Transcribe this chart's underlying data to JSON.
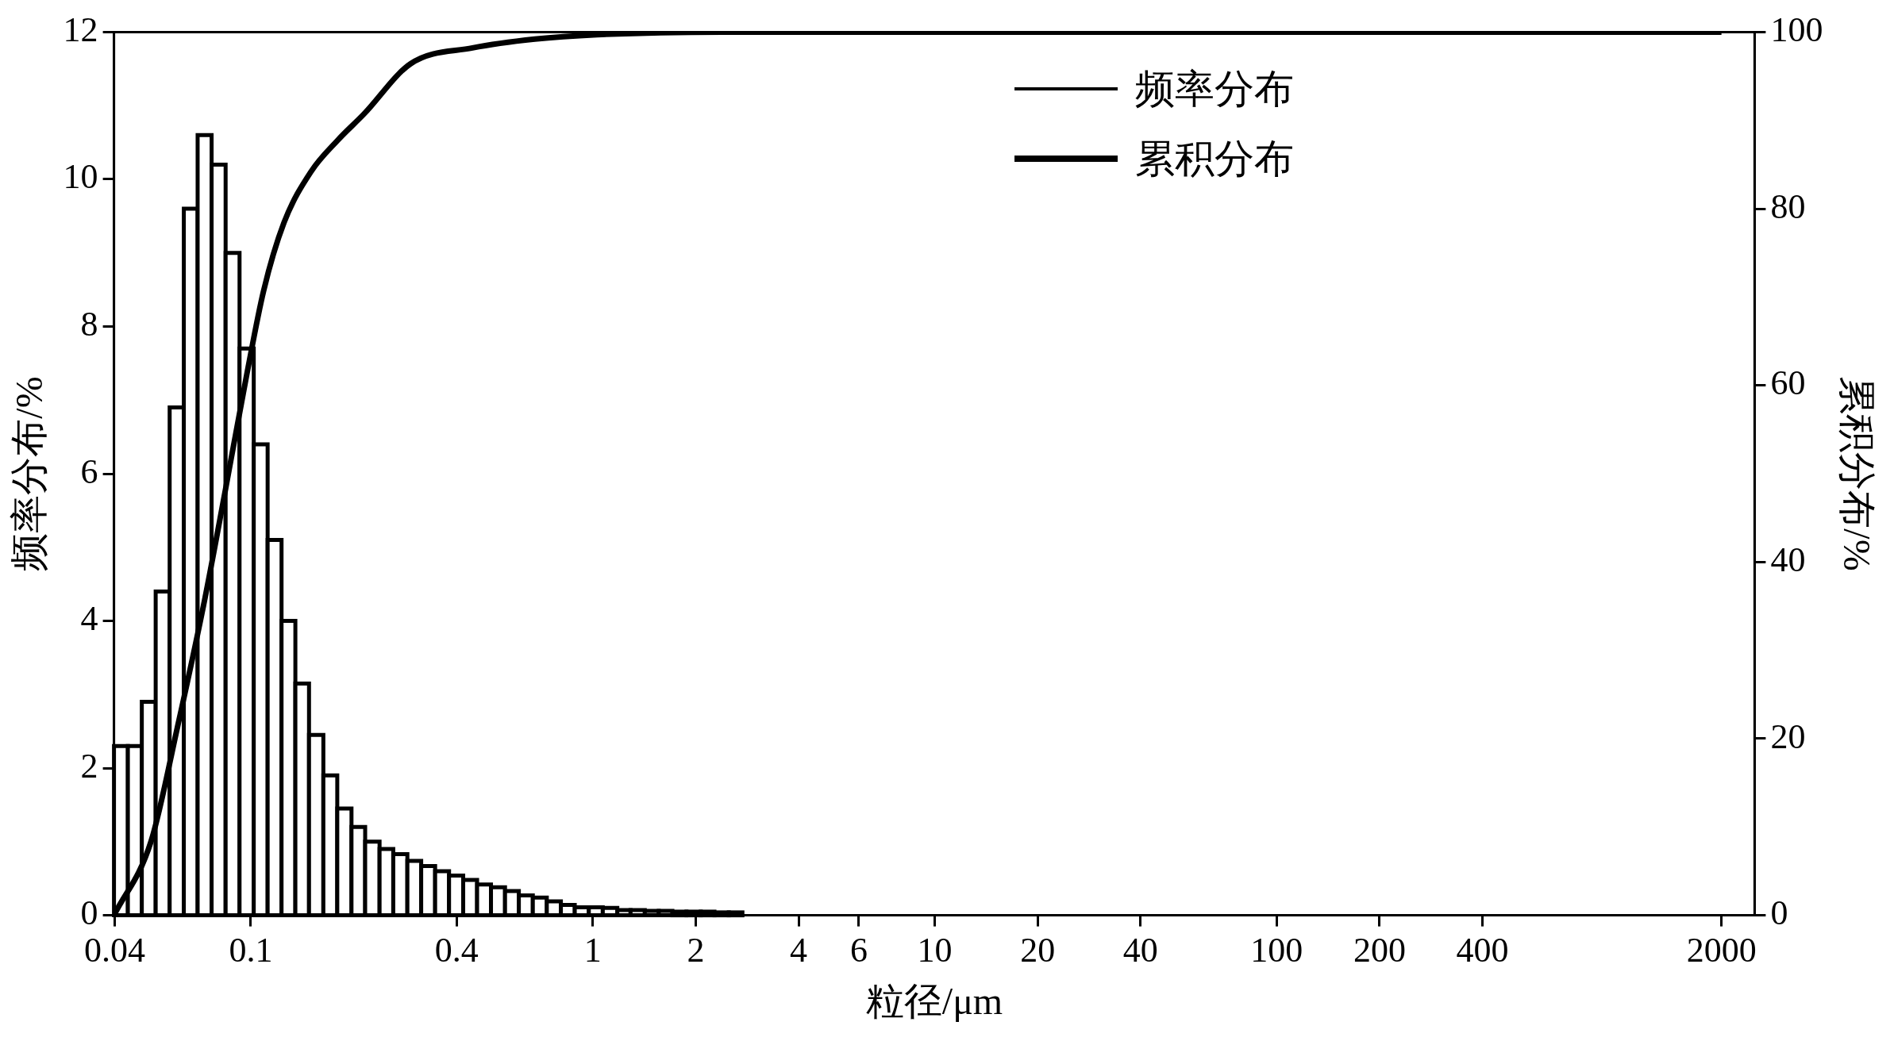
{
  "chart_data": {
    "type": "histogram",
    "xlabel": "粒径/μm",
    "ylabel": "频率分布/%",
    "y2label": "累积分布/%",
    "log": "x",
    "grid": false,
    "legend": "top",
    "xlim": [
      0.0398,
      2500
    ],
    "xticks": [
      0.04,
      0.1,
      0.4,
      1,
      2,
      4,
      6,
      10,
      20,
      40,
      100,
      200,
      400,
      2000
    ],
    "ylim": [
      0,
      12
    ],
    "yticks": [
      0,
      2,
      4,
      6,
      8,
      10,
      12
    ],
    "y2lim": [
      0,
      100
    ],
    "y2ticks": [
      0,
      20,
      40,
      60,
      80,
      100
    ],
    "bins": [
      0.0398,
      0.0437,
      0.048,
      0.0527,
      0.0579,
      0.0637,
      0.0699,
      0.0768,
      0.0844,
      0.0927,
      0.102,
      0.112,
      0.123,
      0.135,
      0.148,
      0.163,
      0.179,
      0.197,
      0.216,
      0.238,
      0.261,
      0.287,
      0.315,
      0.346,
      0.38,
      0.418,
      0.459,
      0.504,
      0.554,
      0.608,
      0.668,
      0.734,
      0.807,
      0.886,
      0.974,
      1.07,
      1.18,
      1.29,
      1.42,
      1.56,
      1.71,
      1.88,
      2.07,
      2.27,
      2.5,
      2.74
    ],
    "series": [
      {
        "name": "频率分布",
        "color": "#000000",
        "values": [
          2.3,
          2.3,
          2.9,
          4.4,
          6.9,
          9.6,
          10.6,
          10.2,
          9.0,
          7.7,
          6.4,
          5.1,
          4.0,
          3.15,
          2.45,
          1.9,
          1.45,
          1.2,
          1.0,
          0.9,
          0.83,
          0.74,
          0.67,
          0.6,
          0.54,
          0.48,
          0.42,
          0.38,
          0.33,
          0.27,
          0.24,
          0.19,
          0.14,
          0.11,
          0.11,
          0.1,
          0.07,
          0.07,
          0.06,
          0.06,
          0.05,
          0.05,
          0.05,
          0.04,
          0.04
        ]
      },
      {
        "name": "累积分布",
        "type": "line",
        "axis": "y2",
        "color": "#000000",
        "x": [
          0.0398,
          0.0511,
          0.0611,
          0.0731,
          0.0845,
          0.0974,
          0.109,
          0.125,
          0.15,
          0.179,
          0.214,
          0.293,
          0.445,
          0.677,
          1.03,
          2.38,
          2000
        ],
        "values": [
          0,
          8.4,
          21.4,
          35.5,
          48.4,
          61.3,
          70.7,
          78.4,
          84.2,
          87.7,
          90.7,
          96.4,
          98.2,
          99.2,
          99.7,
          100,
          100
        ]
      }
    ]
  }
}
